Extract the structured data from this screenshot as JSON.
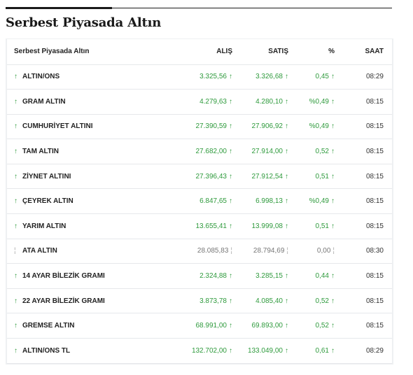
{
  "heading": "Serbest Piyasada Altın",
  "table": {
    "headers": {
      "name": "Serbest Piyasada Altın",
      "buy": "ALIŞ",
      "sell": "SATIŞ",
      "pct": "%",
      "time": "SAAT"
    },
    "rows": [
      {
        "name": "ALTIN/ONS",
        "buy": "3.325,56",
        "sell": "3.326,68",
        "pct": "0,45",
        "time": "08:29",
        "trend": "up"
      },
      {
        "name": "GRAM ALTIN",
        "buy": "4.279,63",
        "sell": "4.280,10",
        "pct": "%0,49",
        "time": "08:15",
        "trend": "up"
      },
      {
        "name": "CUMHURİYET ALTINI",
        "buy": "27.390,59",
        "sell": "27.906,92",
        "pct": "%0,49",
        "time": "08:15",
        "trend": "up"
      },
      {
        "name": "TAM ALTIN",
        "buy": "27.682,00",
        "sell": "27.914,00",
        "pct": "0,52",
        "time": "08:15",
        "trend": "up"
      },
      {
        "name": "ZİYNET ALTINI",
        "buy": "27.396,43",
        "sell": "27.912,54",
        "pct": "0,51",
        "time": "08:15",
        "trend": "up"
      },
      {
        "name": "ÇEYREK ALTIN",
        "buy": "6.847,65",
        "sell": "6.998,13",
        "pct": "%0,49",
        "time": "08:15",
        "trend": "up"
      },
      {
        "name": "YARIM ALTIN",
        "buy": "13.655,41",
        "sell": "13.999,08",
        "pct": "0,51",
        "time": "08:15",
        "trend": "up"
      },
      {
        "name": "ATA ALTIN",
        "buy": "28.085,83",
        "sell": "28.794,69",
        "pct": "0,00",
        "time": "08:30",
        "trend": "flat"
      },
      {
        "name": "14 AYAR BİLEZİK GRAMI",
        "buy": "2.324,88",
        "sell": "3.285,15",
        "pct": "0,44",
        "time": "08:15",
        "trend": "up"
      },
      {
        "name": "22 AYAR BİLEZİK GRAMI",
        "buy": "3.873,78",
        "sell": "4.085,40",
        "pct": "0,52",
        "time": "08:15",
        "trend": "up"
      },
      {
        "name": "GREMSE ALTIN",
        "buy": "68.991,00",
        "sell": "69.893,00",
        "pct": "0,52",
        "time": "08:15",
        "trend": "up"
      },
      {
        "name": "ALTIN/ONS TL",
        "buy": "132.702,00",
        "sell": "133.049,00",
        "pct": "0,61",
        "time": "08:29",
        "trend": "up"
      }
    ]
  },
  "colors": {
    "up": "#2e9a3c",
    "flat": "#aaaaaa"
  },
  "icons": {
    "up": "arrow-up-icon",
    "flat": "dash-icon"
  }
}
